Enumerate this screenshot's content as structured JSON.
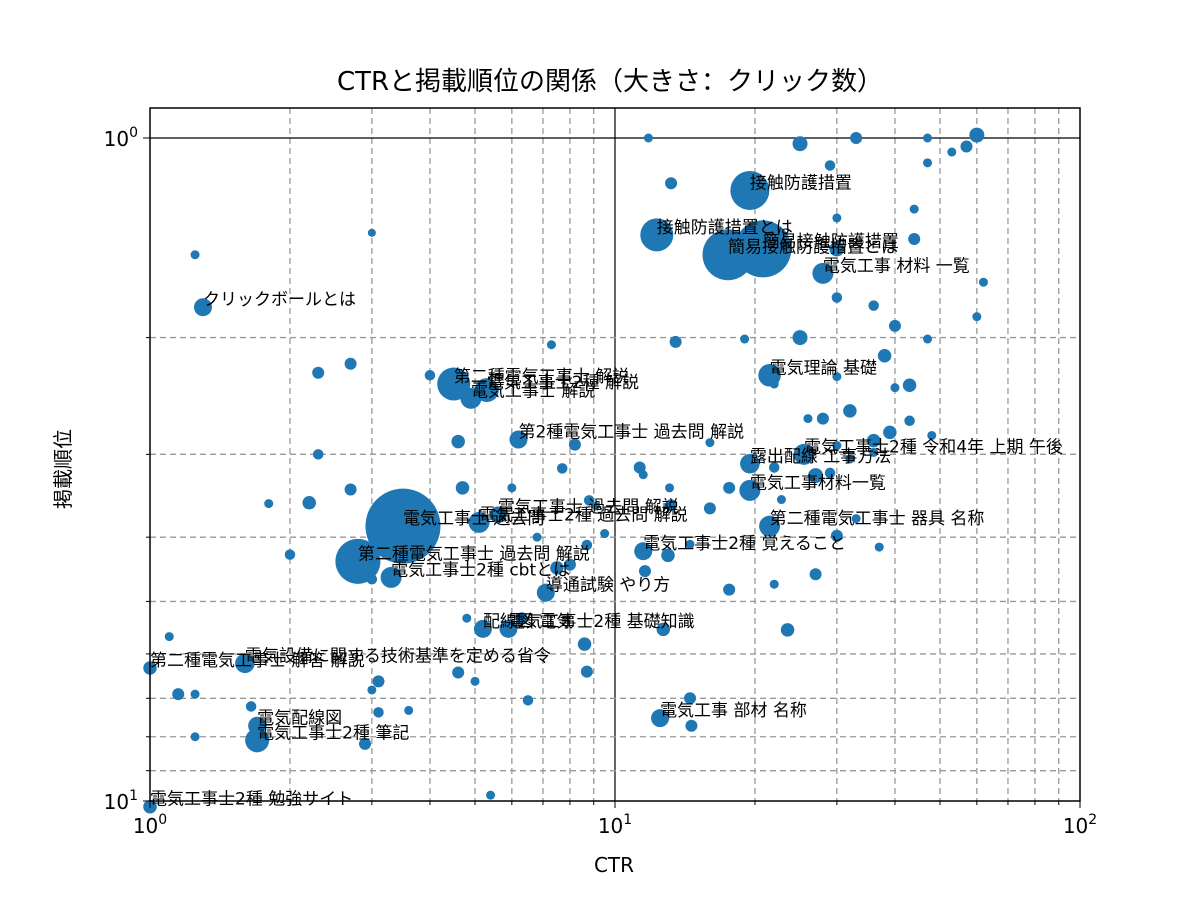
{
  "chart_data": {
    "type": "scatter",
    "title": "CTRと掲載順位の関係（大きさ：クリック数）",
    "xlabel": "CTR",
    "ylabel": "掲載順位",
    "xscale": "log",
    "yscale": "log",
    "y_inverted": true,
    "xlim": [
      1,
      100
    ],
    "ylim": [
      1,
      10
    ],
    "x_ticks": [
      {
        "base": "10",
        "exp": "0"
      },
      {
        "base": "10",
        "exp": "1"
      },
      {
        "base": "10",
        "exp": "2"
      }
    ],
    "y_ticks": [
      {
        "base": "10",
        "exp": "0"
      },
      {
        "base": "10",
        "exp": "1"
      }
    ],
    "grid": true,
    "marker_color": "#1f77b4",
    "points": [
      {
        "x": 19.5,
        "y": 1.2,
        "clicks": 26,
        "label": "接触防護措置"
      },
      {
        "x": 12.3,
        "y": 1.4,
        "clicks": 22,
        "label": "接触防護措置とは"
      },
      {
        "x": 20.8,
        "y": 1.47,
        "clicks": 38,
        "label": "簡易接触防護措置"
      },
      {
        "x": 17.5,
        "y": 1.5,
        "clicks": 34,
        "label": "簡易接触防護措置とは"
      },
      {
        "x": 28,
        "y": 1.6,
        "clicks": 14,
        "label": "電気工事 材料 一覧"
      },
      {
        "x": 1.3,
        "y": 1.8,
        "clicks": 12,
        "label": "クリックボールとは"
      },
      {
        "x": 21.5,
        "y": 2.28,
        "clicks": 15,
        "label": "電気理論 基礎"
      },
      {
        "x": 4.5,
        "y": 2.35,
        "clicks": 22,
        "label": "第二種電気工事士 解説"
      },
      {
        "x": 5.3,
        "y": 2.4,
        "clicks": 16,
        "label": "電気工事士2種 解説"
      },
      {
        "x": 4.9,
        "y": 2.47,
        "clicks": 14,
        "label": "電気工事士 解説"
      },
      {
        "x": 6.2,
        "y": 2.85,
        "clicks": 12,
        "label": "第2種電気工事士 過去問 解説"
      },
      {
        "x": 25.5,
        "y": 3.0,
        "clicks": 14,
        "label": "電気工事士2種 令和4年 上期 午後"
      },
      {
        "x": 19.5,
        "y": 3.1,
        "clicks": 13,
        "label": "露出配線 工事方法"
      },
      {
        "x": 19.5,
        "y": 3.4,
        "clicks": 14,
        "label": "電気工事材料一覧"
      },
      {
        "x": 5.6,
        "y": 3.7,
        "clicks": 11,
        "label": "電気工事士 過去問 解説"
      },
      {
        "x": 5.1,
        "y": 3.8,
        "clicks": 14,
        "label": "電気工事士2種 過去問 解説"
      },
      {
        "x": 3.5,
        "y": 3.85,
        "clicks": 50,
        "label": "電気工事士 過去問"
      },
      {
        "x": 21.5,
        "y": 3.85,
        "clicks": 14,
        "label": "第二種電気工事士 器具 名称"
      },
      {
        "x": 11.5,
        "y": 4.2,
        "clicks": 12,
        "label": "電気工事士2種 覚えること"
      },
      {
        "x": 2.8,
        "y": 4.35,
        "clicks": 30,
        "label": "第二種電気工事士 過去問 解説"
      },
      {
        "x": 3.3,
        "y": 4.6,
        "clicks": 14,
        "label": "電気工事士2種 cbtとは"
      },
      {
        "x": 7.1,
        "y": 4.85,
        "clicks": 12,
        "label": "導通試験 やり方"
      },
      {
        "x": 5.2,
        "y": 5.5,
        "clicks": 12,
        "label": "配線図 電気"
      },
      {
        "x": 5.9,
        "y": 5.5,
        "clicks": 12,
        "label": "電気工事士2種 基礎知識"
      },
      {
        "x": 1.6,
        "y": 6.2,
        "clicks": 13,
        "label": "電気設備に関する技術基準を定める省令"
      },
      {
        "x": 1.0,
        "y": 6.3,
        "clicks": 9,
        "label": "第二種電気工事士 解答 解説"
      },
      {
        "x": 12.5,
        "y": 7.5,
        "clicks": 12,
        "label": "電気工事 部材 名称"
      },
      {
        "x": 1.7,
        "y": 7.7,
        "clicks": 12,
        "label": "電気配線図"
      },
      {
        "x": 1.7,
        "y": 8.1,
        "clicks": 16,
        "label": "電気工事士2種 筆記"
      },
      {
        "x": 1.0,
        "y": 10.2,
        "clicks": 9,
        "label": "電気工事士2種 勉強サイト"
      },
      {
        "x": 11.8,
        "y": 1.0,
        "clicks": 6
      },
      {
        "x": 25,
        "y": 1.02,
        "clicks": 10
      },
      {
        "x": 33,
        "y": 1.0,
        "clicks": 8
      },
      {
        "x": 47,
        "y": 1.0,
        "clicks": 6
      },
      {
        "x": 60,
        "y": 0.99,
        "clicks": 10
      },
      {
        "x": 57,
        "y": 1.03,
        "clicks": 8
      },
      {
        "x": 53,
        "y": 1.05,
        "clicks": 6
      },
      {
        "x": 47,
        "y": 1.09,
        "clicks": 6
      },
      {
        "x": 29,
        "y": 1.1,
        "clicks": 7
      },
      {
        "x": 13.2,
        "y": 1.17,
        "clicks": 8
      },
      {
        "x": 44,
        "y": 1.28,
        "clicks": 6
      },
      {
        "x": 30,
        "y": 1.32,
        "clicks": 6
      },
      {
        "x": 44,
        "y": 1.42,
        "clicks": 8
      },
      {
        "x": 30,
        "y": 1.47,
        "clicks": 10
      },
      {
        "x": 62,
        "y": 1.65,
        "clicks": 6
      },
      {
        "x": 30,
        "y": 1.74,
        "clicks": 7
      },
      {
        "x": 36,
        "y": 1.79,
        "clicks": 7
      },
      {
        "x": 60,
        "y": 1.86,
        "clicks": 6
      },
      {
        "x": 40,
        "y": 1.92,
        "clicks": 8
      },
      {
        "x": 25,
        "y": 2.0,
        "clicks": 10
      },
      {
        "x": 13.5,
        "y": 2.03,
        "clicks": 8
      },
      {
        "x": 19,
        "y": 2.01,
        "clicks": 6
      },
      {
        "x": 47,
        "y": 2.01,
        "clicks": 6
      },
      {
        "x": 38,
        "y": 2.13,
        "clicks": 9
      },
      {
        "x": 1.25,
        "y": 1.5,
        "clicks": 6
      },
      {
        "x": 3.0,
        "y": 1.39,
        "clicks": 5
      },
      {
        "x": 2.3,
        "y": 2.26,
        "clicks": 8
      },
      {
        "x": 2.7,
        "y": 2.19,
        "clicks": 8
      },
      {
        "x": 7.3,
        "y": 2.05,
        "clicks": 6
      },
      {
        "x": 4.0,
        "y": 2.28,
        "clicks": 7
      },
      {
        "x": 22,
        "y": 2.35,
        "clicks": 6
      },
      {
        "x": 30,
        "y": 2.29,
        "clicks": 6
      },
      {
        "x": 43,
        "y": 2.36,
        "clicks": 9
      },
      {
        "x": 40,
        "y": 2.38,
        "clicks": 6
      },
      {
        "x": 32,
        "y": 2.58,
        "clicks": 9
      },
      {
        "x": 26,
        "y": 2.65,
        "clicks": 6
      },
      {
        "x": 28,
        "y": 2.65,
        "clicks": 8
      },
      {
        "x": 43,
        "y": 2.67,
        "clicks": 7
      },
      {
        "x": 39,
        "y": 2.78,
        "clicks": 9
      },
      {
        "x": 36,
        "y": 2.86,
        "clicks": 9
      },
      {
        "x": 30,
        "y": 2.91,
        "clicks": 6
      },
      {
        "x": 48,
        "y": 2.81,
        "clicks": 6
      },
      {
        "x": 4.6,
        "y": 2.87,
        "clicks": 9
      },
      {
        "x": 8.2,
        "y": 2.9,
        "clicks": 8
      },
      {
        "x": 16,
        "y": 2.88,
        "clicks": 6
      },
      {
        "x": 2.3,
        "y": 3.0,
        "clicks": 7
      },
      {
        "x": 7.7,
        "y": 3.15,
        "clicks": 7
      },
      {
        "x": 11.3,
        "y": 3.14,
        "clicks": 8
      },
      {
        "x": 11.5,
        "y": 3.22,
        "clicks": 6
      },
      {
        "x": 22,
        "y": 3.14,
        "clicks": 7
      },
      {
        "x": 27,
        "y": 3.23,
        "clicks": 10
      },
      {
        "x": 29,
        "y": 3.2,
        "clicks": 7
      },
      {
        "x": 32,
        "y": 3.05,
        "clicks": 6
      },
      {
        "x": 36,
        "y": 2.98,
        "clicks": 6
      },
      {
        "x": 2.7,
        "y": 3.39,
        "clicks": 8
      },
      {
        "x": 4.7,
        "y": 3.37,
        "clicks": 9
      },
      {
        "x": 6.0,
        "y": 3.37,
        "clicks": 6
      },
      {
        "x": 13.1,
        "y": 3.37,
        "clicks": 6
      },
      {
        "x": 17.6,
        "y": 3.37,
        "clicks": 8
      },
      {
        "x": 2.2,
        "y": 3.55,
        "clicks": 9
      },
      {
        "x": 1.8,
        "y": 3.56,
        "clicks": 6
      },
      {
        "x": 8.8,
        "y": 3.52,
        "clicks": 7
      },
      {
        "x": 9.1,
        "y": 3.59,
        "clicks": 5
      },
      {
        "x": 13.2,
        "y": 3.58,
        "clicks": 8
      },
      {
        "x": 16,
        "y": 3.62,
        "clicks": 8
      },
      {
        "x": 22.8,
        "y": 3.51,
        "clicks": 6
      },
      {
        "x": 33,
        "y": 3.75,
        "clicks": 6
      },
      {
        "x": 9.5,
        "y": 3.95,
        "clicks": 6
      },
      {
        "x": 30,
        "y": 3.98,
        "clicks": 8
      },
      {
        "x": 6.8,
        "y": 4.0,
        "clicks": 6
      },
      {
        "x": 8.7,
        "y": 4.11,
        "clicks": 7
      },
      {
        "x": 14.5,
        "y": 4.1,
        "clicks": 6
      },
      {
        "x": 37,
        "y": 4.14,
        "clicks": 6
      },
      {
        "x": 2.0,
        "y": 4.25,
        "clicks": 7
      },
      {
        "x": 13.0,
        "y": 4.26,
        "clicks": 9
      },
      {
        "x": 8.0,
        "y": 4.4,
        "clicks": 8
      },
      {
        "x": 7.5,
        "y": 4.45,
        "clicks": 9
      },
      {
        "x": 11.6,
        "y": 4.5,
        "clicks": 8
      },
      {
        "x": 27,
        "y": 4.55,
        "clicks": 8
      },
      {
        "x": 3.0,
        "y": 4.63,
        "clicks": 7
      },
      {
        "x": 17.6,
        "y": 4.8,
        "clicks": 8
      },
      {
        "x": 22,
        "y": 4.71,
        "clicks": 6
      },
      {
        "x": 4.8,
        "y": 5.3,
        "clicks": 6
      },
      {
        "x": 6.3,
        "y": 5.3,
        "clicks": 8
      },
      {
        "x": 12.7,
        "y": 5.51,
        "clicks": 9
      },
      {
        "x": 23.5,
        "y": 5.52,
        "clicks": 9
      },
      {
        "x": 1.1,
        "y": 5.65,
        "clicks": 6
      },
      {
        "x": 8.6,
        "y": 5.8,
        "clicks": 9
      },
      {
        "x": 4.6,
        "y": 6.4,
        "clicks": 8
      },
      {
        "x": 8.7,
        "y": 6.38,
        "clicks": 8
      },
      {
        "x": 3.1,
        "y": 6.6,
        "clicks": 8
      },
      {
        "x": 5.0,
        "y": 6.6,
        "clicks": 6
      },
      {
        "x": 3.0,
        "y": 6.8,
        "clicks": 6
      },
      {
        "x": 1.15,
        "y": 6.9,
        "clicks": 8
      },
      {
        "x": 1.25,
        "y": 6.9,
        "clicks": 6
      },
      {
        "x": 6.5,
        "y": 7.05,
        "clicks": 7
      },
      {
        "x": 14.5,
        "y": 7.0,
        "clicks": 8
      },
      {
        "x": 1.65,
        "y": 7.2,
        "clicks": 7
      },
      {
        "x": 3.1,
        "y": 7.35,
        "clicks": 7
      },
      {
        "x": 3.6,
        "y": 7.3,
        "clicks": 6
      },
      {
        "x": 14.6,
        "y": 7.7,
        "clicks": 8
      },
      {
        "x": 1.25,
        "y": 8.0,
        "clicks": 6
      },
      {
        "x": 2.9,
        "y": 8.2,
        "clicks": 8
      },
      {
        "x": 5.4,
        "y": 9.8,
        "clicks": 6
      }
    ]
  }
}
